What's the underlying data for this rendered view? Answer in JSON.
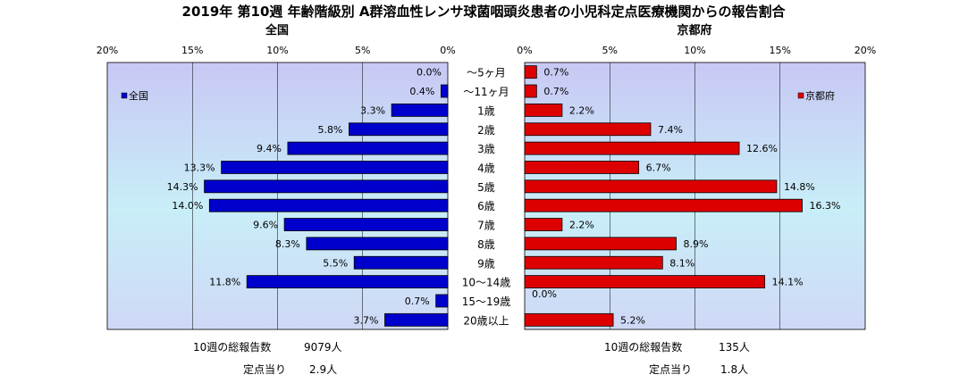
{
  "title": "2019年 第10週 年齢階級別 A群溶血性レンサ球菌咽頭炎患者の小児科定点医療機関からの報告割合",
  "chart_data": {
    "type": "bar",
    "orientation": "horizontal",
    "layout": "butterfly",
    "categories": [
      "〜5ヶ月",
      "〜11ヶ月",
      "1歳",
      "2歳",
      "3歳",
      "4歳",
      "5歳",
      "6歳",
      "7歳",
      "8歳",
      "9歳",
      "10〜14歳",
      "15〜19歳",
      "20歳以上"
    ],
    "panels": [
      {
        "title": "全国",
        "legend": "全国",
        "legend_position": "left",
        "color": "#0000cc",
        "values": [
          0.0,
          0.4,
          3.3,
          5.8,
          9.4,
          13.3,
          14.3,
          14.0,
          9.6,
          8.3,
          5.5,
          11.8,
          0.7,
          3.7
        ],
        "value_labels": [
          "0.0%",
          "0.4%",
          "3.3%",
          "5.8%",
          "9.4%",
          "13.3%",
          "14.3%",
          "14.0%",
          "9.6%",
          "8.3%",
          "5.5%",
          "11.8%",
          "0.7%",
          "3.7%"
        ],
        "xlim": [
          0,
          20
        ],
        "ticks": [
          "20%",
          "15%",
          "10%",
          "5%",
          "0%"
        ],
        "direction": "reversed"
      },
      {
        "title": "京都府",
        "legend": "京都府",
        "legend_position": "right",
        "color": "#dd0000",
        "values": [
          0.7,
          0.7,
          2.2,
          7.4,
          12.6,
          6.7,
          14.8,
          16.3,
          2.2,
          8.9,
          8.1,
          14.1,
          0.0,
          5.2
        ],
        "value_labels": [
          "0.7%",
          "0.7%",
          "2.2%",
          "7.4%",
          "12.6%",
          "6.7%",
          "14.8%",
          "16.3%",
          "2.2%",
          "8.9%",
          "8.1%",
          "14.1%",
          "0.0%",
          "5.2%"
        ],
        "xlim": [
          0,
          20
        ],
        "ticks": [
          "0%",
          "5%",
          "10%",
          "15%",
          "20%"
        ],
        "direction": "normal"
      }
    ],
    "grid": true
  },
  "footer": {
    "left": {
      "total_label": "10週の総報告数",
      "total_value": "9079人",
      "per_label": "定点当り",
      "per_value": "2.9人"
    },
    "right": {
      "total_label": "10週の総報告数",
      "total_value": "135人",
      "per_label": "定点当り",
      "per_value": "1.8人"
    }
  }
}
